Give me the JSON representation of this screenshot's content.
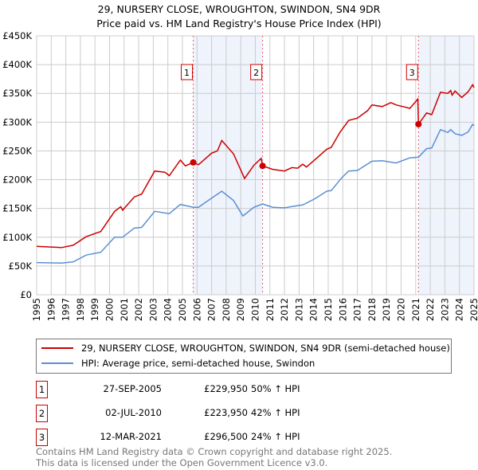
{
  "chart_data": {
    "type": "line",
    "title": "29, NURSERY CLOSE, WROUGHTON, SWINDON, SN4 9DR",
    "subtitle": "Price paid vs. HM Land Registry's House Price Index (HPI)",
    "xlim": [
      1995,
      2025
    ],
    "ylim": [
      0,
      450000
    ],
    "x_ticks": [
      "1995",
      "1996",
      "1997",
      "1998",
      "1999",
      "2000",
      "2001",
      "2002",
      "2003",
      "2004",
      "2005",
      "2006",
      "2007",
      "2008",
      "2009",
      "2010",
      "2011",
      "2012",
      "2013",
      "2014",
      "2015",
      "2016",
      "2017",
      "2018",
      "2019",
      "2020",
      "2021",
      "2022",
      "2023",
      "2024",
      "2025"
    ],
    "y_ticks": [
      "£0",
      "£50K",
      "£100K",
      "£150K",
      "£200K",
      "£250K",
      "£300K",
      "£350K",
      "£400K",
      "£450K"
    ],
    "grid": true,
    "shaded_ranges": [
      [
        2005.74,
        2010.5
      ],
      [
        2021.19,
        2025
      ]
    ],
    "series": [
      {
        "name": "29, NURSERY CLOSE, WROUGHTON, SWINDON, SN4 9DR (semi-detached house)",
        "color": "#cc0000",
        "x": [
          1995,
          1996.7,
          1997.5,
          1998.4,
          1999.4,
          2000.35,
          2000.77,
          2000.9,
          2001.7,
          2002.2,
          2003.1,
          2003.8,
          2004.1,
          2004.86,
          2005.2,
          2005.74,
          2006.1,
          2007,
          2007.4,
          2007.7,
          2008.5,
          2009.26,
          2009.9,
          2010.4,
          2010.5,
          2011.2,
          2012,
          2012.5,
          2012.9,
          2013.25,
          2013.5,
          2014.1,
          2014.9,
          2015.2,
          2015.8,
          2016.4,
          2017,
          2017.7,
          2018,
          2018.7,
          2019.3,
          2019.65,
          2020.6,
          2021.14,
          2021.19,
          2021.75,
          2022.1,
          2022.7,
          2023.2,
          2023.4,
          2023.5,
          2023.7,
          2024.16,
          2024.6,
          2024.9,
          2025
        ],
        "y": [
          84000,
          82000,
          86000,
          101000,
          110000,
          145000,
          153000,
          147000,
          170000,
          175000,
          215000,
          213000,
          207000,
          234000,
          224000,
          229950,
          226000,
          246000,
          250000,
          268000,
          245000,
          202000,
          225000,
          237000,
          223950,
          218000,
          215000,
          221000,
          220000,
          227000,
          222000,
          235000,
          253000,
          256000,
          282000,
          303000,
          307000,
          320000,
          330000,
          327000,
          334000,
          330000,
          324000,
          340000,
          296500,
          316000,
          313000,
          352000,
          350000,
          355000,
          347000,
          354000,
          343000,
          353000,
          365000,
          360000
        ]
      },
      {
        "name": "HPI: Average price, semi-detached house, Swindon",
        "color": "#5b8fd4",
        "x": [
          1995,
          1996.7,
          1997.5,
          1998.4,
          1999.4,
          2000.35,
          2000.9,
          2001.7,
          2002.2,
          2003.1,
          2004.1,
          2004.86,
          2005.74,
          2006.1,
          2007,
          2007.7,
          2008.5,
          2009.15,
          2009.9,
          2010.5,
          2011.2,
          2012,
          2012.9,
          2013.25,
          2014.1,
          2014.9,
          2015.2,
          2015.95,
          2016.4,
          2017,
          2018,
          2018.7,
          2019.65,
          2020.6,
          2021.19,
          2021.75,
          2022.1,
          2022.7,
          2023.2,
          2023.4,
          2023.7,
          2024.16,
          2024.6,
          2024.9,
          2025
        ],
        "y": [
          56000,
          55000,
          57000,
          69000,
          74000,
          100000,
          100000,
          116000,
          117000,
          145000,
          141000,
          157000,
          152000,
          152000,
          168000,
          180000,
          164000,
          137000,
          152000,
          157700,
          152000,
          151000,
          155000,
          156000,
          167000,
          180000,
          181000,
          204000,
          215000,
          216000,
          232000,
          233000,
          229000,
          238000,
          239000,
          254000,
          255000,
          287000,
          282000,
          287000,
          280000,
          277000,
          283000,
          296000,
          294000
        ]
      }
    ],
    "sales": [
      {
        "label": "1",
        "x": 2005.74,
        "y": 229950
      },
      {
        "label": "2",
        "x": 2010.5,
        "y": 223950
      },
      {
        "label": "3",
        "x": 2021.19,
        "y": 296500
      }
    ]
  },
  "legend": {
    "items": [
      "29, NURSERY CLOSE, WROUGHTON, SWINDON, SN4 9DR (semi-detached house)",
      "HPI: Average price, semi-detached house, Swindon"
    ]
  },
  "transactions": [
    {
      "num": "1",
      "date": "27-SEP-2005",
      "price": "£229,950",
      "hpi": "50% ↑ HPI"
    },
    {
      "num": "2",
      "date": "02-JUL-2010",
      "price": "£223,950",
      "hpi": "42% ↑ HPI"
    },
    {
      "num": "3",
      "date": "12-MAR-2021",
      "price": "£296,500",
      "hpi": "24% ↑ HPI"
    }
  ],
  "footer": {
    "line1": "Contains HM Land Registry data © Crown copyright and database right 2025.",
    "line2": "This data is licensed under the Open Government Licence v3.0."
  }
}
